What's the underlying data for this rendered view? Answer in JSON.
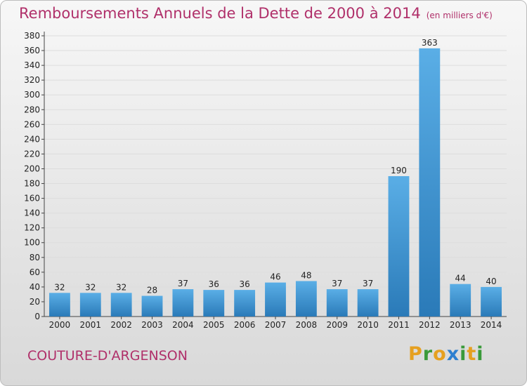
{
  "header": {
    "title": "Remboursements Annuels de la Dette de 2000 à 2014",
    "unit": "(en milliers d'€)"
  },
  "footer": {
    "commune": "COUTURE-D'ARGENSON",
    "brand_letters": [
      "P",
      "r",
      "o",
      "x",
      "i",
      "t",
      "i"
    ]
  },
  "colors": {
    "title": "#b0306a",
    "bar_light": "#5aaee6",
    "bar_dark": "#2a7ab8",
    "grid": "#dddddd",
    "brand_letters": [
      "#e6a020",
      "#3a9a3a",
      "#e6a020",
      "#2c7fd0",
      "#3a9a3a",
      "#e6a020",
      "#3a9a3a"
    ]
  },
  "chart_data": {
    "type": "bar",
    "title": "Remboursements Annuels de la Dette de 2000 à 2014",
    "categories": [
      "2000",
      "2001",
      "2002",
      "2003",
      "2004",
      "2005",
      "2006",
      "2007",
      "2008",
      "2009",
      "2010",
      "2011",
      "2012",
      "2013",
      "2014"
    ],
    "values": [
      32,
      32,
      32,
      28,
      37,
      36,
      36,
      46,
      48,
      37,
      37,
      190,
      363,
      44,
      40
    ],
    "ylim": [
      0,
      380
    ],
    "ytick_step": 20,
    "grid": true,
    "xlabel": "",
    "ylabel": ""
  }
}
